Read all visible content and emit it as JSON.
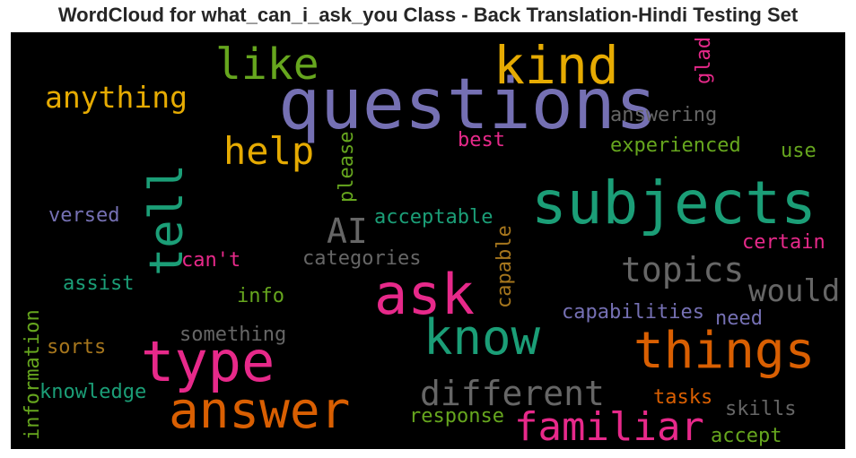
{
  "chart_data": {
    "type": "wordcloud",
    "title": "WordCloud for what_can_i_ask_you Class - Back Translation-Hindi Testing Set",
    "colors": {
      "purple": "#7570b3",
      "teal": "#1b9e77",
      "orange": "#d95f02",
      "pink": "#e7298a",
      "green": "#66a61e",
      "gold": "#e6ab02",
      "brown": "#a6761d",
      "gray": "#666666"
    },
    "words": [
      {
        "text": "questions",
        "color": "purple",
        "orientation": "horizontal"
      },
      {
        "text": "kind",
        "color": "gold",
        "orientation": "horizontal"
      },
      {
        "text": "like",
        "color": "green",
        "orientation": "horizontal"
      },
      {
        "text": "anything",
        "color": "gold",
        "orientation": "horizontal"
      },
      {
        "text": "glad",
        "color": "pink",
        "orientation": "vertical"
      },
      {
        "text": "answering",
        "color": "gray",
        "orientation": "horizontal"
      },
      {
        "text": "help",
        "color": "gold",
        "orientation": "horizontal"
      },
      {
        "text": "best",
        "color": "pink",
        "orientation": "horizontal"
      },
      {
        "text": "please",
        "color": "green",
        "orientation": "vertical"
      },
      {
        "text": "experienced",
        "color": "green",
        "orientation": "horizontal"
      },
      {
        "text": "use",
        "color": "green",
        "orientation": "horizontal"
      },
      {
        "text": "subjects",
        "color": "teal",
        "orientation": "horizontal"
      },
      {
        "text": "tell",
        "color": "teal",
        "orientation": "vertical"
      },
      {
        "text": "versed",
        "color": "purple",
        "orientation": "horizontal"
      },
      {
        "text": "AI",
        "color": "gray",
        "orientation": "horizontal"
      },
      {
        "text": "acceptable",
        "color": "teal",
        "orientation": "horizontal"
      },
      {
        "text": "capable",
        "color": "brown",
        "orientation": "vertical"
      },
      {
        "text": "certain",
        "color": "pink",
        "orientation": "horizontal"
      },
      {
        "text": "can't",
        "color": "pink",
        "orientation": "horizontal"
      },
      {
        "text": "categories",
        "color": "gray",
        "orientation": "horizontal"
      },
      {
        "text": "topics",
        "color": "gray",
        "orientation": "horizontal"
      },
      {
        "text": "assist",
        "color": "teal",
        "orientation": "horizontal"
      },
      {
        "text": "ask",
        "color": "pink",
        "orientation": "horizontal"
      },
      {
        "text": "would",
        "color": "gray",
        "orientation": "horizontal"
      },
      {
        "text": "info",
        "color": "green",
        "orientation": "horizontal"
      },
      {
        "text": "capabilities",
        "color": "purple",
        "orientation": "horizontal"
      },
      {
        "text": "need",
        "color": "purple",
        "orientation": "horizontal"
      },
      {
        "text": "information",
        "color": "green",
        "orientation": "vertical"
      },
      {
        "text": "something",
        "color": "gray",
        "orientation": "horizontal"
      },
      {
        "text": "know",
        "color": "teal",
        "orientation": "horizontal"
      },
      {
        "text": "sorts",
        "color": "brown",
        "orientation": "horizontal"
      },
      {
        "text": "type",
        "color": "pink",
        "orientation": "horizontal"
      },
      {
        "text": "things",
        "color": "orange",
        "orientation": "horizontal"
      },
      {
        "text": "knowledge",
        "color": "teal",
        "orientation": "horizontal"
      },
      {
        "text": "different",
        "color": "gray",
        "orientation": "horizontal"
      },
      {
        "text": "tasks",
        "color": "orange",
        "orientation": "horizontal"
      },
      {
        "text": "answer",
        "color": "orange",
        "orientation": "horizontal"
      },
      {
        "text": "skills",
        "color": "gray",
        "orientation": "horizontal"
      },
      {
        "text": "response",
        "color": "green",
        "orientation": "horizontal"
      },
      {
        "text": "familiar",
        "color": "pink",
        "orientation": "horizontal"
      },
      {
        "text": "accept",
        "color": "green",
        "orientation": "horizontal"
      }
    ]
  }
}
